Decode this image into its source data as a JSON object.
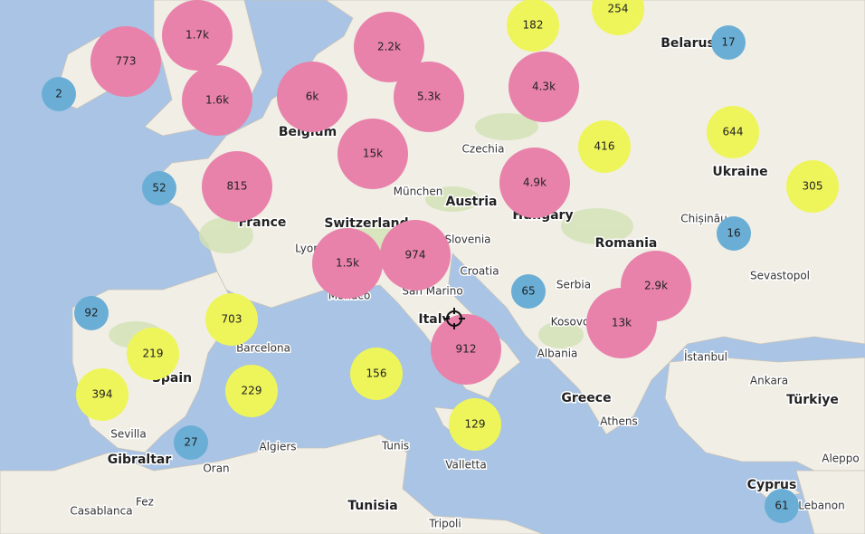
{
  "clusters": [
    {
      "label": "773",
      "color": "#e882ab"
    },
    {
      "label": "1.7k",
      "color": "#e882ab"
    },
    {
      "label": "1.6k",
      "color": "#e882ab"
    },
    {
      "label": "6k",
      "color": "#e882ab"
    },
    {
      "label": "2.2k",
      "color": "#e882ab"
    },
    {
      "label": "5.3k",
      "color": "#e882ab"
    },
    {
      "label": "4.3k",
      "color": "#e882ab"
    },
    {
      "label": "15k",
      "color": "#e882ab"
    },
    {
      "label": "815",
      "color": "#e882ab"
    },
    {
      "label": "4.9k",
      "color": "#e882ab"
    },
    {
      "label": "1.5k",
      "color": "#e882ab"
    },
    {
      "label": "974",
      "color": "#e882ab"
    },
    {
      "label": "912",
      "color": "#e882ab"
    },
    {
      "label": "2.9k",
      "color": "#e882ab"
    },
    {
      "label": "13k",
      "color": "#e882ab"
    },
    {
      "label": "182",
      "color": "#eef55a"
    },
    {
      "label": "254",
      "color": "#eef55a"
    },
    {
      "label": "416",
      "color": "#eef55a"
    },
    {
      "label": "644",
      "color": "#eef55a"
    },
    {
      "label": "305",
      "color": "#eef55a"
    },
    {
      "label": "703",
      "color": "#eef55a"
    },
    {
      "label": "219",
      "color": "#eef55a"
    },
    {
      "label": "394",
      "color": "#eef55a"
    },
    {
      "label": "229",
      "color": "#eef55a"
    },
    {
      "label": "156",
      "color": "#eef55a"
    },
    {
      "label": "129",
      "color": "#eef55a"
    },
    {
      "label": "2",
      "color": "#6aaed6"
    },
    {
      "label": "17",
      "color": "#6aaed6"
    },
    {
      "label": "52",
      "color": "#6aaed6"
    },
    {
      "label": "16",
      "color": "#6aaed6"
    },
    {
      "label": "65",
      "color": "#6aaed6"
    },
    {
      "label": "92",
      "color": "#6aaed6"
    },
    {
      "label": "27",
      "color": "#6aaed6"
    },
    {
      "label": "61",
      "color": "#6aaed6"
    }
  ],
  "places": [
    {
      "name": "Belarus",
      "major": true
    },
    {
      "name": "Belgium",
      "major": true
    },
    {
      "name": "Czechia",
      "major": false
    },
    {
      "name": "München",
      "major": false
    },
    {
      "name": "Austria",
      "major": true
    },
    {
      "name": "Hungary",
      "major": true
    },
    {
      "name": "Switzerland",
      "major": true
    },
    {
      "name": "France",
      "major": true
    },
    {
      "name": "Lyon",
      "major": false
    },
    {
      "name": "Slovenia",
      "major": false
    },
    {
      "name": "Romania",
      "major": true
    },
    {
      "name": "Ukraine",
      "major": true
    },
    {
      "name": "Chișinău",
      "major": false
    },
    {
      "name": "Sevastopol",
      "major": false
    },
    {
      "name": "Croatia",
      "major": false
    },
    {
      "name": "Serbia",
      "major": false
    },
    {
      "name": "San Marino",
      "major": false
    },
    {
      "name": "Monaco",
      "major": false
    },
    {
      "name": "Italy",
      "major": true
    },
    {
      "name": "Kosovo",
      "major": false
    },
    {
      "name": "Barcelona",
      "major": false
    },
    {
      "name": "Spain",
      "major": true
    },
    {
      "name": "Albania",
      "major": false
    },
    {
      "name": "İstanbul",
      "major": false
    },
    {
      "name": "Ankara",
      "major": false
    },
    {
      "name": "Türkiye",
      "major": true
    },
    {
      "name": "Greece",
      "major": true
    },
    {
      "name": "Athens",
      "major": false
    },
    {
      "name": "Sevilla",
      "major": false
    },
    {
      "name": "Gibraltar",
      "major": true
    },
    {
      "name": "Algiers",
      "major": false
    },
    {
      "name": "Tunis",
      "major": false
    },
    {
      "name": "Valletta",
      "major": false
    },
    {
      "name": "Oran",
      "major": false
    },
    {
      "name": "Aleppo",
      "major": false
    },
    {
      "name": "Cyprus",
      "major": true
    },
    {
      "name": "Lebanon",
      "major": false
    },
    {
      "name": "Tunisia",
      "major": true
    },
    {
      "name": "Fez",
      "major": false
    },
    {
      "name": "Casablanca",
      "major": false
    },
    {
      "name": "Tripoli",
      "major": false
    }
  ]
}
